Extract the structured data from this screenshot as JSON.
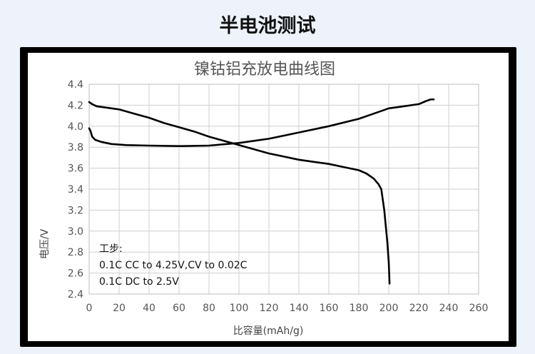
{
  "page": {
    "title": "半电池测试"
  },
  "chart_data": {
    "type": "line",
    "title": "镍钴铝充放电曲线图",
    "xlabel": "比容量(mAh/g)",
    "ylabel": "电压/V",
    "xlim": [
      0,
      260
    ],
    "ylim": [
      2.4,
      4.4
    ],
    "xticks": [
      "0",
      "20",
      "40",
      "60",
      "80",
      "100",
      "120",
      "140",
      "160",
      "180",
      "200",
      "220",
      "240",
      "260"
    ],
    "yticks": [
      "2.4",
      "2.6",
      "2.8",
      "3.0",
      "3.2",
      "3.4",
      "3.6",
      "3.8",
      "4.0",
      "4.2",
      "4.4"
    ],
    "grid": true,
    "annotations": [
      "工步:",
      "0.1C CC to 4.25V,CV to 0.02C",
      "0.1C DC to 2.5V"
    ],
    "series": [
      {
        "x": [
          0,
          1,
          2,
          4,
          8,
          15,
          25,
          40,
          60,
          80,
          100,
          120,
          140,
          160,
          180,
          190,
          200,
          210,
          220,
          225,
          228,
          230
        ],
        "y": [
          3.98,
          3.95,
          3.9,
          3.87,
          3.85,
          3.83,
          3.82,
          3.815,
          3.81,
          3.815,
          3.84,
          3.88,
          3.94,
          4.0,
          4.07,
          4.12,
          4.17,
          4.19,
          4.21,
          4.24,
          4.255,
          4.255
        ]
      },
      {
        "x": [
          0,
          2,
          5,
          10,
          20,
          30,
          40,
          50,
          60,
          70,
          80,
          90,
          100,
          110,
          120,
          130,
          140,
          150,
          160,
          170,
          180,
          185,
          190,
          193,
          195,
          196,
          197,
          198,
          199,
          200,
          200.5
        ],
        "y": [
          4.23,
          4.21,
          4.19,
          4.18,
          4.16,
          4.12,
          4.08,
          4.03,
          3.99,
          3.95,
          3.9,
          3.86,
          3.82,
          3.78,
          3.74,
          3.71,
          3.68,
          3.66,
          3.64,
          3.61,
          3.58,
          3.55,
          3.5,
          3.45,
          3.4,
          3.3,
          3.2,
          3.05,
          2.9,
          2.7,
          2.5
        ]
      }
    ]
  }
}
